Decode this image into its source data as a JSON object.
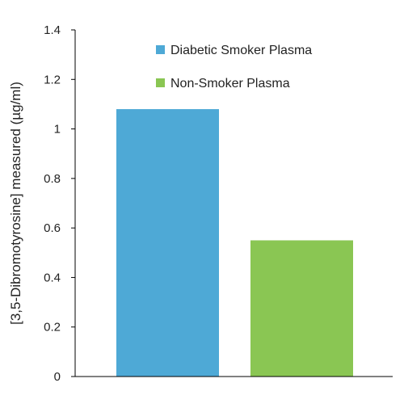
{
  "chart_data": {
    "type": "bar",
    "title": "",
    "xlabel": "",
    "ylabel": "[3,5-Dibromotyrosine] measured (µg/ml)",
    "ylim": [
      0,
      1.4
    ],
    "yticks": [
      "0",
      "0.2",
      "0.4",
      "0.6",
      "0.8",
      "1",
      "1.2",
      "1.4"
    ],
    "grid": false,
    "legend_position": "top-right",
    "series": [
      {
        "name": "Diabetic Smoker Plasma",
        "values": [
          1.08
        ],
        "color": "#4ea9d6"
      },
      {
        "name": "Non-Smoker Plasma",
        "values": [
          0.55
        ],
        "color": "#8ac653"
      }
    ]
  }
}
